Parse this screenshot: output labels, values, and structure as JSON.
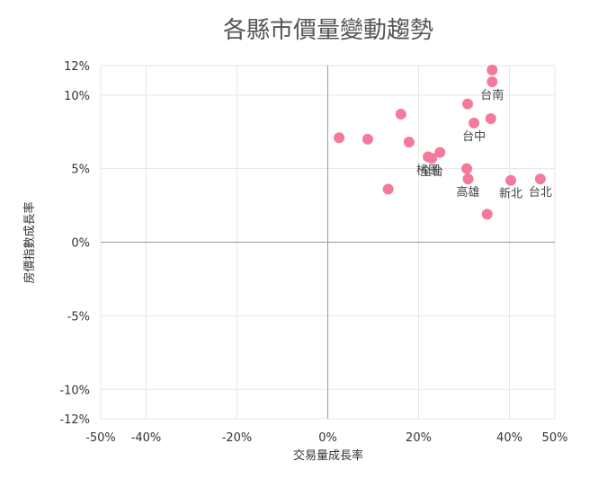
{
  "chart_data": {
    "type": "scatter",
    "title": "各縣市價量變動趨勢",
    "xlabel": "交易量成長率",
    "ylabel": "房價指數成長率",
    "xlim": [
      -50,
      50
    ],
    "ylim": [
      -12,
      12
    ],
    "x_ticks": [
      {
        "value": -50,
        "label": "-50%"
      },
      {
        "value": -40,
        "label": "-40%"
      },
      {
        "value": -20,
        "label": "-20%"
      },
      {
        "value": 0,
        "label": "0%"
      },
      {
        "value": 20,
        "label": "20%"
      },
      {
        "value": 40,
        "label": "40%"
      },
      {
        "value": 50,
        "label": "50%"
      }
    ],
    "y_ticks": [
      {
        "value": 12,
        "label": "12%"
      },
      {
        "value": 10,
        "label": "10%"
      },
      {
        "value": 5,
        "label": "5%"
      },
      {
        "value": 0,
        "label": "0%"
      },
      {
        "value": -5,
        "label": "-5%"
      },
      {
        "value": -10,
        "label": "-10%"
      },
      {
        "value": -12,
        "label": "-12%"
      }
    ],
    "grid": true,
    "legend": "none",
    "point_color": "#f47a9b",
    "points": [
      {
        "x": 36.2,
        "y": 11.7,
        "label": ""
      },
      {
        "x": 36.2,
        "y": 10.9,
        "label": "台南"
      },
      {
        "x": 30.8,
        "y": 9.4,
        "label": ""
      },
      {
        "x": 16.1,
        "y": 8.7,
        "label": ""
      },
      {
        "x": 35.9,
        "y": 8.4,
        "label": ""
      },
      {
        "x": 32.2,
        "y": 8.1,
        "label": "台中"
      },
      {
        "x": 2.5,
        "y": 7.1,
        "label": ""
      },
      {
        "x": 8.8,
        "y": 7.0,
        "label": ""
      },
      {
        "x": 17.9,
        "y": 6.8,
        "label": ""
      },
      {
        "x": 24.7,
        "y": 6.1,
        "label": ""
      },
      {
        "x": 22.1,
        "y": 5.8,
        "label": "桃園"
      },
      {
        "x": 22.9,
        "y": 5.7,
        "label": "全台"
      },
      {
        "x": 30.6,
        "y": 5.0,
        "label": ""
      },
      {
        "x": 30.9,
        "y": 4.3,
        "label": "高雄"
      },
      {
        "x": 40.3,
        "y": 4.2,
        "label": "新北"
      },
      {
        "x": 46.8,
        "y": 4.3,
        "label": "台北"
      },
      {
        "x": 13.3,
        "y": 3.6,
        "label": ""
      },
      {
        "x": 35.1,
        "y": 1.9,
        "label": ""
      }
    ]
  }
}
